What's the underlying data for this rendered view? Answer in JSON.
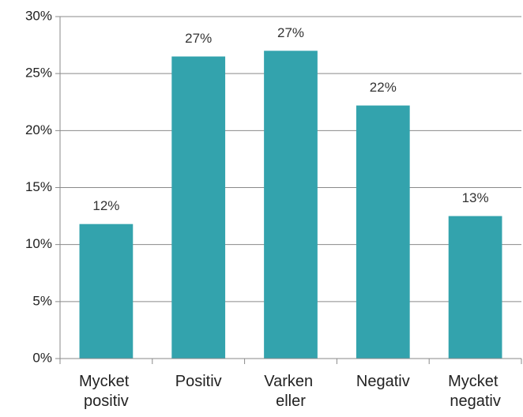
{
  "chart_data": {
    "type": "bar",
    "categories": [
      "Mycket positiv",
      "Positiv",
      "Varken eller",
      "Negativ",
      "Mycket negativ"
    ],
    "values": [
      11.8,
      26.5,
      27.0,
      22.2,
      12.5
    ],
    "value_labels": [
      "12%",
      "27%",
      "27%",
      "22%",
      "13%"
    ],
    "color": "#33a3ad",
    "ylim": [
      0,
      30
    ],
    "yticks": [
      {
        "value": 0,
        "label": "0%"
      },
      {
        "value": 5,
        "label": "5%"
      },
      {
        "value": 10,
        "label": "10%"
      },
      {
        "value": 15,
        "label": "15%"
      },
      {
        "value": 20,
        "label": "20%"
      },
      {
        "value": 25,
        "label": "25%"
      },
      {
        "value": 30,
        "label": "30%"
      }
    ],
    "grid": true
  }
}
